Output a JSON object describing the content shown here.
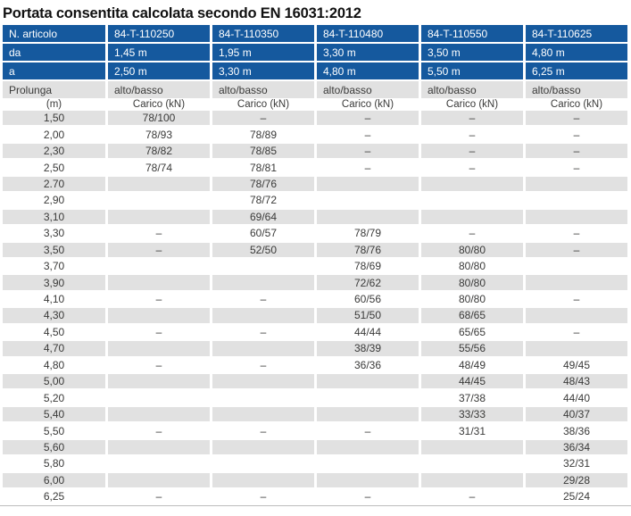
{
  "title": "Portata consentita calcolata secondo EN 16031:2012",
  "colors": {
    "header_blue": "#15599e",
    "row_gray": "#e1e1e1",
    "text_dark": "#3a3a39",
    "header_text": "#ffffff"
  },
  "table": {
    "article_row": {
      "label": "N. articolo",
      "values": [
        "84-T-110250",
        "84-T-110350",
        "84-T-110480",
        "84-T-110550",
        "84-T-110625"
      ]
    },
    "da_row": {
      "label": "da",
      "values": [
        "1,45 m",
        "1,95 m",
        "3,30 m",
        "3,50 m",
        "4,80 m"
      ]
    },
    "a_row": {
      "label": "a",
      "values": [
        "2,50 m",
        "3,30 m",
        "4,80 m",
        "5,50 m",
        "6,25 m"
      ]
    },
    "prolunga_row": {
      "label": "Prolunga",
      "values": [
        "alto/basso",
        "alto/basso",
        "alto/basso",
        "alto/basso",
        "alto/basso"
      ]
    },
    "units_row": {
      "label": "(m)",
      "values": [
        "Carico (kN)",
        "Carico (kN)",
        "Carico (kN)",
        "Carico (kN)",
        "Carico (kN)"
      ]
    },
    "data_rows": [
      {
        "m": "1,50",
        "values": [
          "78/100",
          "–",
          "–",
          "–",
          "–"
        ]
      },
      {
        "m": "2,00",
        "values": [
          "78/93",
          "78/89",
          "–",
          "–",
          "–"
        ]
      },
      {
        "m": "2,30",
        "values": [
          "78/82",
          "78/85",
          "–",
          "–",
          "–"
        ]
      },
      {
        "m": "2,50",
        "values": [
          "78/74",
          "78/81",
          "–",
          "–",
          "–"
        ]
      },
      {
        "m": "2.70",
        "values": [
          "",
          "78/76",
          "",
          "",
          ""
        ]
      },
      {
        "m": "2,90",
        "values": [
          "",
          "78/72",
          "",
          "",
          ""
        ]
      },
      {
        "m": "3,10",
        "values": [
          "",
          "69/64",
          "",
          "",
          ""
        ]
      },
      {
        "m": "3,30",
        "values": [
          "–",
          "60/57",
          "78/79",
          "–",
          "–"
        ]
      },
      {
        "m": "3,50",
        "values": [
          "–",
          "52/50",
          "78/76",
          "80/80",
          "–"
        ]
      },
      {
        "m": "3,70",
        "values": [
          "",
          "",
          "78/69",
          "80/80",
          ""
        ]
      },
      {
        "m": "3,90",
        "values": [
          "",
          "",
          "72/62",
          "80/80",
          ""
        ]
      },
      {
        "m": "4,10",
        "values": [
          "–",
          "–",
          "60/56",
          "80/80",
          "–"
        ]
      },
      {
        "m": "4,30",
        "values": [
          "",
          "",
          "51/50",
          "68/65",
          ""
        ]
      },
      {
        "m": "4,50",
        "values": [
          "–",
          "–",
          "44/44",
          "65/65",
          "–"
        ]
      },
      {
        "m": "4,70",
        "values": [
          "",
          "",
          "38/39",
          "55/56",
          ""
        ]
      },
      {
        "m": "4,80",
        "values": [
          "–",
          "–",
          "36/36",
          "48/49",
          "49/45"
        ]
      },
      {
        "m": "5,00",
        "values": [
          "",
          "",
          "",
          "44/45",
          "48/43"
        ]
      },
      {
        "m": "5,20",
        "values": [
          "",
          "",
          "",
          "37/38",
          "44/40"
        ]
      },
      {
        "m": "5,40",
        "values": [
          "",
          "",
          "",
          "33/33",
          "40/37"
        ]
      },
      {
        "m": "5,50",
        "values": [
          "–",
          "–",
          "–",
          "31/31",
          "38/36"
        ]
      },
      {
        "m": "5,60",
        "values": [
          "",
          "",
          "",
          "",
          "36/34"
        ]
      },
      {
        "m": "5,80",
        "values": [
          "",
          "",
          "",
          "",
          "32/31"
        ]
      },
      {
        "m": "6,00",
        "values": [
          "",
          "",
          "",
          "",
          "29/28"
        ]
      },
      {
        "m": "6,25",
        "values": [
          "–",
          "–",
          "–",
          "–",
          "25/24"
        ]
      }
    ]
  }
}
